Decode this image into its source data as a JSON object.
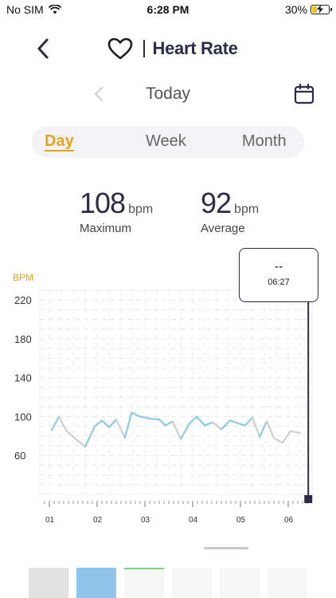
{
  "status_bar": {
    "carrier": "No SIM",
    "time": "6:28 PM",
    "battery": "30%",
    "battery_level": 0.3
  },
  "header": {
    "title": "Heart Rate",
    "icon": "heart-outline-icon"
  },
  "date_nav": {
    "label": "Today"
  },
  "period_tabs": [
    {
      "label": "Day",
      "active": true
    },
    {
      "label": "Week",
      "active": false
    },
    {
      "label": "Month",
      "active": false
    }
  ],
  "stats": {
    "maximum": {
      "value": "108",
      "unit": "bpm",
      "label": "Maximum"
    },
    "average": {
      "value": "92",
      "unit": "bpm",
      "label": "Average"
    }
  },
  "tooltip": {
    "value": "--",
    "time": "06:27"
  },
  "colors": {
    "accent": "#e8a419",
    "navy": "#2c2c4a",
    "line_blue": "#8ecae6",
    "line_gray": "#cfcfcf"
  },
  "chart_data": {
    "type": "line",
    "ylabel": "BPM",
    "y_ticks": [
      220,
      180,
      140,
      100,
      60
    ],
    "x_ticks": [
      "01",
      "02",
      "03",
      "04",
      "05",
      "06"
    ],
    "xlim": [
      0.8,
      6.5
    ],
    "ylim": [
      20,
      230
    ],
    "points": [
      {
        "x": 1.05,
        "y": 86,
        "seg": "gray"
      },
      {
        "x": 1.2,
        "y": 100,
        "seg": "blue"
      },
      {
        "x": 1.35,
        "y": 86,
        "seg": "gray"
      },
      {
        "x": 1.55,
        "y": 77,
        "seg": "gray"
      },
      {
        "x": 1.75,
        "y": 69,
        "seg": "gray"
      },
      {
        "x": 1.95,
        "y": 90,
        "seg": "blue"
      },
      {
        "x": 2.1,
        "y": 96,
        "seg": "blue"
      },
      {
        "x": 2.25,
        "y": 89,
        "seg": "blue"
      },
      {
        "x": 2.4,
        "y": 97,
        "seg": "blue"
      },
      {
        "x": 2.58,
        "y": 78,
        "seg": "gray"
      },
      {
        "x": 2.72,
        "y": 104,
        "seg": "blue"
      },
      {
        "x": 2.9,
        "y": 100,
        "seg": "blue"
      },
      {
        "x": 3.1,
        "y": 98,
        "seg": "blue"
      },
      {
        "x": 3.3,
        "y": 97,
        "seg": "blue"
      },
      {
        "x": 3.43,
        "y": 91,
        "seg": "blue"
      },
      {
        "x": 3.58,
        "y": 95,
        "seg": "blue"
      },
      {
        "x": 3.75,
        "y": 77,
        "seg": "gray"
      },
      {
        "x": 3.92,
        "y": 92,
        "seg": "blue"
      },
      {
        "x": 4.08,
        "y": 100,
        "seg": "blue"
      },
      {
        "x": 4.25,
        "y": 91,
        "seg": "blue"
      },
      {
        "x": 4.42,
        "y": 94,
        "seg": "blue"
      },
      {
        "x": 4.6,
        "y": 87,
        "seg": "gray"
      },
      {
        "x": 4.78,
        "y": 96,
        "seg": "blue"
      },
      {
        "x": 4.95,
        "y": 93,
        "seg": "blue"
      },
      {
        "x": 5.1,
        "y": 91,
        "seg": "blue"
      },
      {
        "x": 5.25,
        "y": 99,
        "seg": "blue"
      },
      {
        "x": 5.4,
        "y": 79,
        "seg": "gray"
      },
      {
        "x": 5.55,
        "y": 95,
        "seg": "blue"
      },
      {
        "x": 5.7,
        "y": 78,
        "seg": "gray"
      },
      {
        "x": 5.88,
        "y": 73,
        "seg": "gray"
      },
      {
        "x": 6.05,
        "y": 85,
        "seg": "gray"
      },
      {
        "x": 6.25,
        "y": 83,
        "seg": "gray"
      }
    ],
    "cursor_x": 6.42,
    "grid": true
  },
  "bottom_thumbnails": [
    {
      "color": "#e2e2e2"
    },
    {
      "color": "#8ec5e8"
    },
    {
      "color": "#f6f6f6",
      "accent": "#7ed37e"
    },
    {
      "color": "#f6f6f6"
    },
    {
      "color": "#f6f6f6"
    },
    {
      "color": "#f6f6f6"
    }
  ]
}
